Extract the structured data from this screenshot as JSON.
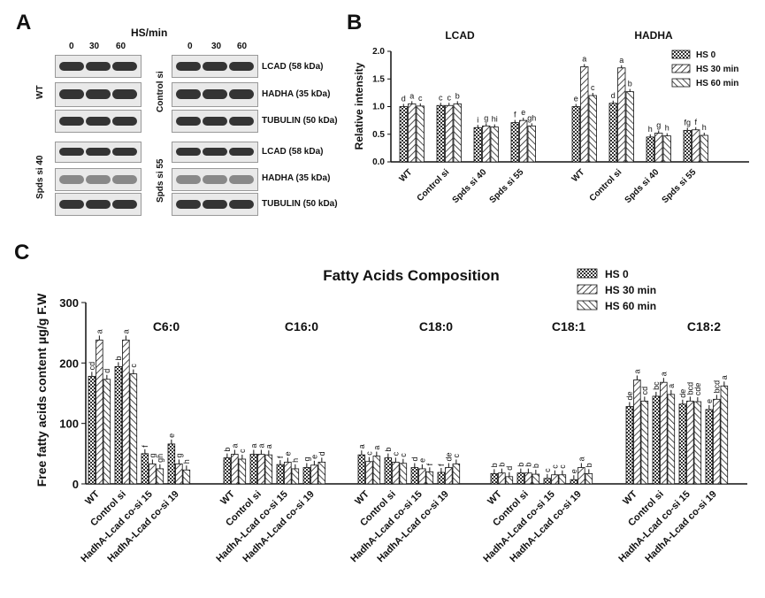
{
  "panel_labels": {
    "a": "A",
    "b": "B",
    "c": "C"
  },
  "blot": {
    "hs_label": "HS/min",
    "times": [
      "0",
      "30",
      "60"
    ],
    "left_groups": [
      "WT",
      "Spds si 40"
    ],
    "right_groups": [
      "Control si",
      "Spds si 55"
    ],
    "proteins": [
      "LCAD (58 kDa)",
      "HADHA (35 kDa)",
      "TUBULIN (50 kDa)"
    ]
  },
  "chart_data": [
    {
      "type": "bar",
      "panel": "B",
      "ylabel": "Relative intensity",
      "ylim": [
        0,
        2.0
      ],
      "yticks": [
        "0.0",
        "0.5",
        "1.0",
        "1.5",
        "2.0"
      ],
      "legend": [
        "HS 0",
        "HS 30 min",
        "HS 60 min"
      ],
      "legend_position": "top-right",
      "groups": [
        {
          "title": "LCAD",
          "categories": [
            "WT",
            "Control si",
            "Spds si 40",
            "Spds si 55"
          ],
          "series": [
            {
              "name": "HS 0",
              "values": [
                1.0,
                1.02,
                0.62,
                0.71
              ],
              "letters": [
                "d",
                "c",
                "i",
                "f"
              ]
            },
            {
              "name": "HS 30 min",
              "values": [
                1.05,
                1.02,
                0.65,
                0.75
              ],
              "letters": [
                "a",
                "c",
                "g",
                "e"
              ]
            },
            {
              "name": "HS 60 min",
              "values": [
                1.01,
                1.05,
                0.63,
                0.65
              ],
              "letters": [
                "c",
                "b",
                "hi",
                "gh"
              ]
            }
          ]
        },
        {
          "title": "HADHA",
          "categories": [
            "WT",
            "Control si",
            "Spds si 40",
            "Spds si 55"
          ],
          "series": [
            {
              "name": "HS 0",
              "values": [
                1.0,
                1.06,
                0.45,
                0.57
              ],
              "letters": [
                "e",
                "d",
                "h",
                "fg"
              ]
            },
            {
              "name": "HS 30 min",
              "values": [
                1.72,
                1.7,
                0.52,
                0.58
              ],
              "letters": [
                "a",
                "a",
                "g",
                "f"
              ]
            },
            {
              "name": "HS 60 min",
              "values": [
                1.2,
                1.27,
                0.47,
                0.48
              ],
              "letters": [
                "c",
                "b",
                "h",
                "h"
              ]
            }
          ]
        }
      ]
    },
    {
      "type": "bar",
      "panel": "C",
      "title": "Fatty Acids Composition",
      "ylabel": "Free fatty acids content μg/g F.W",
      "ylim": [
        0,
        300
      ],
      "yticks": [
        "0",
        "100",
        "200",
        "300"
      ],
      "legend": [
        "HS 0",
        "HS 30 min",
        "HS 60 min"
      ],
      "legend_position": "top-right",
      "categories": [
        "WT",
        "Control si",
        "HadhA-Lcad co-si 15",
        "HadhA-Lcad co-si 19"
      ],
      "groups": [
        {
          "title": "C6:0",
          "series": [
            {
              "name": "HS 0",
              "values": [
                178,
                194,
                50,
                66
              ],
              "letters": [
                "cd",
                "b",
                "f",
                "e"
              ]
            },
            {
              "name": "HS 30 min",
              "values": [
                238,
                238,
                33,
                33
              ],
              "letters": [
                "a",
                "a",
                "g",
                "g"
              ]
            },
            {
              "name": "HS 60 min",
              "values": [
                173,
                182,
                25,
                23
              ],
              "letters": [
                "d",
                "c",
                "gh",
                "h"
              ]
            }
          ]
        },
        {
          "title": "C16:0",
          "series": [
            {
              "name": "HS 0",
              "values": [
                43,
                49,
                32,
                27
              ],
              "letters": [
                "b",
                "a",
                "f",
                "g"
              ]
            },
            {
              "name": "HS 30 min",
              "values": [
                49,
                49,
                36,
                31
              ],
              "letters": [
                "a",
                "a",
                "e",
                "e"
              ]
            },
            {
              "name": "HS 60 min",
              "values": [
                41,
                48,
                25,
                36
              ],
              "letters": [
                "c",
                "a",
                "h",
                "d"
              ]
            }
          ]
        },
        {
          "title": "C18:0",
          "series": [
            {
              "name": "HS 0",
              "values": [
                48,
                43,
                27,
                19
              ],
              "letters": [
                "a",
                "b",
                "d",
                "f"
              ]
            },
            {
              "name": "HS 30 min",
              "values": [
                37,
                36,
                25,
                27
              ],
              "letters": [
                "c",
                "c",
                "e",
                "de"
              ]
            },
            {
              "name": "HS 60 min",
              "values": [
                46,
                34,
                20,
                33
              ],
              "letters": [
                "a",
                "c",
                "f",
                "c"
              ]
            }
          ]
        },
        {
          "title": "C18:1",
          "series": [
            {
              "name": "HS 0",
              "values": [
                17,
                18,
                9,
                7
              ],
              "letters": [
                "b",
                "b",
                "c",
                "e"
              ]
            },
            {
              "name": "HS 30 min",
              "values": [
                18,
                18,
                15,
                27
              ],
              "letters": [
                "b",
                "b",
                "c",
                "a"
              ]
            },
            {
              "name": "HS 60 min",
              "values": [
                12,
                16,
                15,
                17
              ],
              "letters": [
                "d",
                "b",
                "c",
                "b"
              ]
            }
          ]
        },
        {
          "title": "C18:2",
          "series": [
            {
              "name": "HS 0",
              "values": [
                128,
                145,
                132,
                123
              ],
              "letters": [
                "de",
                "bc",
                "de",
                "e"
              ]
            },
            {
              "name": "HS 30 min",
              "values": [
                172,
                168,
                137,
                140
              ],
              "letters": [
                "a",
                "a",
                "bcd",
                "bcd"
              ]
            },
            {
              "name": "HS 60 min",
              "values": [
                137,
                148,
                136,
                162
              ],
              "letters": [
                "cd",
                "a",
                "cde",
                "a"
              ]
            }
          ]
        }
      ]
    }
  ]
}
